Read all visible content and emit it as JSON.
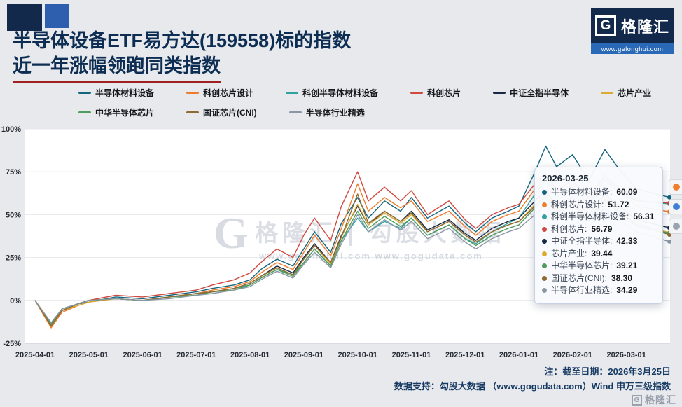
{
  "title": {
    "line1": "半导体设备ETF易方达(159558)标的指数",
    "line2": "近一年涨幅领跑同类指数"
  },
  "logo": {
    "g": "G",
    "name": "格隆汇",
    "url": "www.gelonghui.com"
  },
  "watermark": {
    "brand_g": "G",
    "brand": "格隆汇",
    "divider": "|",
    "partner": "勾股大数据",
    "url_left": "www.gelonghui.com",
    "url_right": "www.gogudata.com"
  },
  "tooltip": {
    "date": "2026-03-25",
    "rows": [
      {
        "label": "半导体材料设备",
        "value": "60.09"
      },
      {
        "label": "科创芯片设计",
        "value": "51.72"
      },
      {
        "label": "科创半导体材料设备",
        "value": "56.31"
      },
      {
        "label": "科创芯片",
        "value": "56.79"
      },
      {
        "label": "中证全指半导体",
        "value": "42.33"
      },
      {
        "label": "芯片产业",
        "value": "39.44"
      },
      {
        "label": "中华半导体芯片",
        "value": "39.21"
      },
      {
        "label": "国证芯片(CNI)",
        "value": "38.30"
      },
      {
        "label": "半导体行业精选",
        "value": "34.29"
      }
    ]
  },
  "footnotes": {
    "line1": "注：截至日期：2026年3月25日",
    "line2": "数据支持：勾股大数据 （www.gogudata.com）Wind 申万三级指数"
  },
  "corner_logo": {
    "g": "G",
    "text": "格隆汇"
  },
  "colors": {
    "background": "#e7e9ed",
    "title_navy": "#0d2d52",
    "underline_red": "#9e2020",
    "brand_navy": "#13294b",
    "brand_blue": "#2a69b8"
  },
  "chart_data": {
    "type": "line",
    "title": "半导体设备ETF易方达(159558)标的指数近一年涨幅领跑同类指数",
    "xlabel": "",
    "ylabel": "",
    "ylabel_suffix": "%",
    "grid": true,
    "legend_position": "top",
    "ylim": [
      -25,
      100
    ],
    "yticks": [
      100,
      75,
      50,
      25,
      0,
      -25
    ],
    "xtick_labels": [
      "2025-04-01",
      "2025-05-01",
      "2025-06-01",
      "2025-07-01",
      "2025-08-01",
      "2025-09-01",
      "2025-10-01",
      "2025-11-01",
      "2025-12-01",
      "2026-01-01",
      "2026-02-01",
      "2026-03-01"
    ],
    "x_months": [
      0,
      0.3,
      0.5,
      0.8,
      1,
      1.5,
      2,
      2.5,
      3,
      3.3,
      3.7,
      4,
      4.2,
      4.5,
      4.8,
      5,
      5.2,
      5.5,
      5.7,
      6,
      6.2,
      6.5,
      6.8,
      7,
      7.3,
      7.7,
      8,
      8.2,
      8.5,
      8.8,
      9,
      9.3,
      9.5,
      9.7,
      10,
      10.3,
      10.6,
      10.9,
      11.2,
      11.8
    ],
    "series": [
      {
        "name": "半导体材料设备",
        "color": "#15657f",
        "values": [
          0,
          -15,
          -6,
          -2,
          -1,
          2,
          1,
          3,
          5,
          7,
          9,
          12,
          18,
          24,
          20,
          30,
          40,
          28,
          45,
          60,
          48,
          58,
          52,
          60,
          48,
          55,
          45,
          40,
          48,
          52,
          55,
          75,
          90,
          78,
          85,
          70,
          88,
          75,
          65,
          60.09
        ]
      },
      {
        "name": "科创芯片设计",
        "color": "#ee7c2b",
        "values": [
          0,
          -16,
          -7,
          -3,
          -1,
          1,
          0,
          2,
          4,
          6,
          8,
          11,
          16,
          22,
          18,
          28,
          38,
          26,
          42,
          68,
          52,
          60,
          54,
          58,
          46,
          52,
          43,
          38,
          46,
          50,
          52,
          65,
          72,
          62,
          68,
          58,
          72,
          62,
          55,
          51.72
        ]
      },
      {
        "name": "科创半导体材料设备",
        "color": "#2ea3a1",
        "values": [
          0,
          -14,
          -5,
          -2,
          0,
          1,
          0,
          2,
          3,
          5,
          7,
          9,
          13,
          18,
          15,
          22,
          30,
          20,
          35,
          48,
          40,
          46,
          42,
          48,
          38,
          44,
          36,
          33,
          40,
          45,
          48,
          62,
          70,
          60,
          66,
          56,
          70,
          62,
          58,
          56.31
        ]
      },
      {
        "name": "科创芯片",
        "color": "#d0493f",
        "values": [
          0,
          -15,
          -6,
          -2,
          0,
          3,
          2,
          4,
          6,
          9,
          12,
          16,
          22,
          30,
          25,
          38,
          48,
          35,
          55,
          75,
          58,
          66,
          58,
          64,
          50,
          58,
          47,
          42,
          50,
          54,
          56,
          68,
          74,
          64,
          70,
          60,
          73,
          64,
          58,
          56.79
        ]
      },
      {
        "name": "中证全指半导体",
        "color": "#182944",
        "values": [
          0,
          -14,
          -5,
          -2,
          0,
          1,
          0,
          2,
          4,
          5,
          7,
          10,
          14,
          20,
          16,
          25,
          33,
          22,
          38,
          55,
          44,
          52,
          46,
          52,
          41,
          47,
          39,
          35,
          42,
          46,
          48,
          58,
          64,
          55,
          60,
          50,
          62,
          54,
          47,
          42.33
        ]
      },
      {
        "name": "芯片产业",
        "color": "#dcab30",
        "values": [
          0,
          -15,
          -6,
          -3,
          -1,
          1,
          0,
          2,
          4,
          5,
          7,
          10,
          14,
          19,
          15,
          24,
          32,
          21,
          37,
          56,
          44,
          51,
          45,
          50,
          40,
          46,
          38,
          34,
          40,
          44,
          46,
          56,
          62,
          53,
          58,
          48,
          60,
          52,
          45,
          39.44
        ]
      },
      {
        "name": "中华半导体芯片",
        "color": "#4e9c59",
        "values": [
          0,
          -14,
          -5,
          -2,
          0,
          1,
          0,
          2,
          3,
          5,
          6,
          9,
          13,
          18,
          14,
          22,
          30,
          20,
          35,
          52,
          42,
          49,
          43,
          48,
          38,
          44,
          36,
          32,
          38,
          42,
          44,
          54,
          60,
          51,
          56,
          46,
          58,
          50,
          43,
          39.21
        ]
      },
      {
        "name": "国证芯片(CNI)",
        "color": "#8e6b33",
        "values": [
          0,
          -15,
          -6,
          -2,
          0,
          1,
          0,
          2,
          4,
          5,
          7,
          10,
          14,
          19,
          15,
          24,
          32,
          22,
          37,
          62,
          45,
          52,
          46,
          51,
          40,
          46,
          38,
          34,
          40,
          44,
          46,
          55,
          61,
          52,
          57,
          47,
          59,
          51,
          44,
          38.3
        ]
      },
      {
        "name": "半导体行业精选",
        "color": "#8997a4",
        "values": [
          0,
          -13,
          -5,
          -2,
          0,
          1,
          0,
          1,
          3,
          4,
          6,
          8,
          12,
          17,
          13,
          21,
          28,
          19,
          33,
          50,
          40,
          47,
          41,
          46,
          36,
          42,
          34,
          30,
          36,
          40,
          42,
          50,
          56,
          47,
          52,
          43,
          54,
          46,
          40,
          34.29
        ]
      }
    ]
  }
}
